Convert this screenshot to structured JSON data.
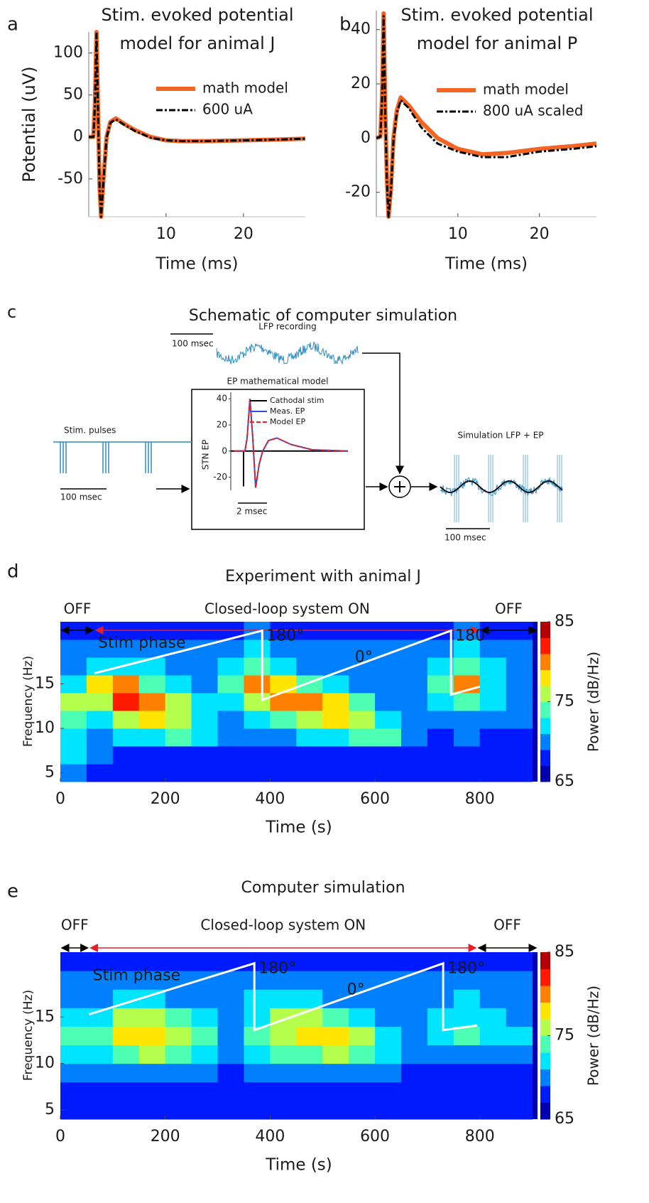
{
  "chart_data": [
    {
      "panel_label": "a",
      "type": "line",
      "title": [
        "Stim. evoked potential",
        "model for animal J"
      ],
      "x_label": "Time (ms)",
      "y_label": "Potential (uV)",
      "x": [
        0,
        0.6,
        0.8,
        1.0,
        1.2,
        1.4,
        1.6,
        1.9,
        2.3,
        2.8,
        3.5,
        4.5,
        6,
        8,
        10,
        12,
        15,
        20,
        25,
        28
      ],
      "series": [
        {
          "name": "math model",
          "color": "#f26522",
          "style": "solid",
          "values": [
            0,
            0,
            40,
            125,
            30,
            -60,
            -95,
            -50,
            0,
            18,
            22,
            16,
            8,
            0,
            -4,
            -5,
            -5,
            -4,
            -3,
            -2
          ]
        },
        {
          "name": "600 uA",
          "color": "#000000",
          "style": "dash-dot",
          "values": [
            0,
            0,
            38,
            123,
            28,
            -62,
            -95,
            -52,
            -1,
            17,
            21,
            15,
            7,
            -1,
            -4,
            -5,
            -5,
            -4,
            -3,
            -2
          ]
        }
      ],
      "xlim": [
        0,
        28
      ],
      "ylim": [
        -95,
        125
      ],
      "xticks": [
        10,
        20
      ],
      "yticks": [
        -50,
        0,
        50,
        100
      ],
      "legend": "upper right"
    },
    {
      "panel_label": "b",
      "type": "line",
      "title": [
        "Stim. evoked potential",
        "model for animal P"
      ],
      "x_label": "Time (ms)",
      "x": [
        0,
        0.5,
        0.7,
        0.9,
        1.1,
        1.3,
        1.5,
        1.8,
        2.1,
        2.5,
        3.0,
        4,
        5.5,
        7.5,
        10,
        13,
        16,
        20,
        24,
        27
      ],
      "series": [
        {
          "name": "math model",
          "color": "#f26522",
          "style": "solid",
          "values": [
            0,
            0.5,
            15,
            46,
            10,
            -15,
            -29,
            -18,
            0,
            10,
            15,
            12,
            6,
            0,
            -4,
            -6,
            -5.5,
            -4,
            -3,
            -2
          ]
        },
        {
          "name": "800 uA scaled",
          "color": "#000000",
          "style": "dash-dot",
          "values": [
            0,
            0.5,
            14,
            45,
            9,
            -16,
            -29,
            -19,
            -1,
            9,
            14,
            11,
            4,
            -2,
            -5,
            -7,
            -7,
            -5,
            -4,
            -3
          ]
        }
      ],
      "xlim": [
        0,
        27
      ],
      "ylim": [
        -29,
        47
      ],
      "xticks": [
        10,
        20
      ],
      "yticks": [
        -20,
        0,
        20,
        40
      ],
      "legend": "upper right"
    },
    {
      "panel_label": "d",
      "type": "heatmap",
      "title": "Experiment with animal J",
      "x_label": "Time (s)",
      "y_label": "Frequency (Hz)",
      "x_bins": [
        0,
        50,
        100,
        150,
        200,
        250,
        300,
        350,
        400,
        450,
        500,
        550,
        600,
        650,
        700,
        750,
        800,
        850,
        900
      ],
      "y_bins": [
        4,
        6,
        8,
        10,
        12,
        14,
        16,
        18,
        20,
        22
      ],
      "z": [
        [
          70,
          68,
          67,
          67,
          67,
          67,
          67,
          67,
          67,
          67,
          67,
          67,
          67,
          67,
          67,
          67,
          67,
          67
        ],
        [
          71,
          69,
          68,
          68,
          68,
          68,
          68,
          68,
          68,
          68,
          68,
          68,
          68,
          68,
          68,
          68,
          67,
          67
        ],
        [
          72,
          70,
          71,
          72,
          74,
          71,
          69,
          69,
          70,
          71,
          72,
          74,
          73,
          69,
          68,
          69,
          68,
          68
        ],
        [
          74,
          72,
          75,
          77,
          76,
          72,
          70,
          71,
          73,
          75,
          77,
          76,
          72,
          69,
          69,
          70,
          69,
          69
        ],
        [
          76,
          76,
          81,
          80,
          75,
          71,
          71,
          75,
          80,
          80,
          77,
          73,
          70,
          70,
          71,
          74,
          71,
          70
        ],
        [
          72,
          77,
          79,
          74,
          71,
          70,
          73,
          79,
          78,
          74,
          71,
          70,
          70,
          70,
          73,
          79,
          72,
          70
        ],
        [
          70,
          72,
          72,
          71,
          70,
          70,
          72,
          74,
          72,
          70,
          70,
          70,
          69,
          70,
          71,
          74,
          71,
          69
        ],
        [
          69,
          70,
          70,
          69,
          69,
          69,
          70,
          71,
          70,
          69,
          69,
          69,
          69,
          69,
          70,
          71,
          69,
          69
        ],
        [
          68,
          68,
          68,
          68,
          68,
          68,
          68,
          69,
          68,
          68,
          68,
          68,
          68,
          68,
          68,
          69,
          68,
          68
        ]
      ],
      "colormap": "jet",
      "zlim": [
        65,
        85
      ],
      "zticks": [
        65,
        75,
        85
      ],
      "colorbar_label": "Power (dB/Hz)",
      "xlim": [
        0,
        910
      ],
      "ylim": [
        4,
        22
      ],
      "xticks": [
        0,
        200,
        400,
        600,
        800
      ],
      "yticks": [
        5,
        10,
        15
      ],
      "segments": [
        {
          "label": "OFF",
          "start": 0,
          "end": 65,
          "color": "#000000"
        },
        {
          "label": "Closed-loop system ON",
          "start": 65,
          "end": 800,
          "color": "#e8202a"
        },
        {
          "label": "OFF",
          "start": 800,
          "end": 910,
          "color": "#000000"
        }
      ],
      "stim_phase": {
        "x": [
          65,
          385,
          385,
          745,
          745,
          800
        ],
        "y": [
          16.2,
          21,
          13.2,
          21,
          13.8,
          14.7
        ],
        "color": "#ffffff"
      },
      "annotations": [
        "Stim phase",
        "180°",
        "0°",
        "180°"
      ]
    },
    {
      "panel_label": "e",
      "type": "heatmap",
      "title": "Computer simulation",
      "x_label": "Time (s)",
      "y_label": "Frequency (Hz)",
      "x_bins": [
        0,
        50,
        100,
        150,
        200,
        250,
        300,
        350,
        400,
        450,
        500,
        550,
        600,
        650,
        700,
        750,
        800,
        850,
        900
      ],
      "y_bins": [
        4,
        6,
        8,
        10,
        12,
        14,
        16,
        18,
        20,
        22
      ],
      "z": [
        [
          67,
          67,
          67,
          67,
          67,
          67,
          67,
          67,
          67,
          67,
          67,
          67,
          67,
          67,
          67,
          67,
          67,
          67
        ],
        [
          68,
          68,
          68,
          68,
          68,
          68,
          68,
          68,
          68,
          68,
          68,
          68,
          68,
          68,
          68,
          68,
          68,
          68
        ],
        [
          69,
          69,
          69,
          70,
          70,
          69,
          68,
          69,
          69,
          69,
          70,
          70,
          69,
          68,
          68,
          68,
          68,
          68
        ],
        [
          72,
          71,
          74,
          75,
          74,
          72,
          69,
          71,
          73,
          74,
          75,
          74,
          71,
          69,
          69,
          70,
          70,
          70
        ],
        [
          73,
          73,
          77,
          78,
          76,
          73,
          70,
          73,
          76,
          78,
          77,
          75,
          71,
          70,
          71,
          73,
          72,
          71
        ],
        [
          71,
          72,
          75,
          75,
          73,
          71,
          70,
          72,
          75,
          76,
          74,
          72,
          70,
          70,
          71,
          72,
          71,
          70
        ],
        [
          70,
          70,
          71,
          71,
          70,
          70,
          70,
          71,
          71,
          71,
          70,
          70,
          70,
          70,
          70,
          71,
          70,
          70
        ],
        [
          69,
          69,
          69,
          69,
          69,
          69,
          69,
          69,
          69,
          69,
          69,
          69,
          69,
          69,
          69,
          69,
          69,
          69
        ],
        [
          68,
          68,
          68,
          68,
          68,
          68,
          68,
          68,
          68,
          68,
          68,
          68,
          68,
          68,
          68,
          68,
          68,
          68
        ]
      ],
      "colormap": "jet",
      "zlim": [
        65,
        85
      ],
      "zticks": [
        65,
        75,
        85
      ],
      "colorbar_label": "Power (dB/Hz)",
      "xlim": [
        0,
        910
      ],
      "ylim": [
        4,
        22
      ],
      "xticks": [
        0,
        200,
        400,
        600,
        800
      ],
      "yticks": [
        5,
        10,
        15
      ],
      "segments": [
        {
          "label": "OFF",
          "start": 0,
          "end": 55,
          "color": "#000000"
        },
        {
          "label": "Closed-loop system ON",
          "start": 55,
          "end": 795,
          "color": "#e8202a"
        },
        {
          "label": "OFF",
          "start": 795,
          "end": 910,
          "color": "#000000"
        }
      ],
      "stim_phase": {
        "x": [
          55,
          370,
          370,
          730,
          730,
          795
        ],
        "y": [
          15.3,
          20.8,
          13.6,
          20.8,
          13.6,
          14.1
        ],
        "color": "#ffffff"
      },
      "annotations": [
        "Stim phase",
        "180°",
        "0°",
        "180°"
      ]
    }
  ],
  "schematic": {
    "panel_label": "c",
    "title": "Schematic of computer simulation",
    "lfp_label": "LFP recording",
    "lfp_scale": "100 msec",
    "model_label": "EP mathematical model",
    "stim_label": "Stim. pulses",
    "stim_scale": "100 msec",
    "sim_label": "Simulation LFP + EP",
    "sim_scale": "100 msec",
    "inset": {
      "y_label": "STN EP",
      "ylim": [
        -30,
        45
      ],
      "yticks": [
        40,
        20,
        0,
        -20
      ],
      "x_scale": "2 msec",
      "legend": [
        {
          "name": "Cathodal stim",
          "color": "#000000"
        },
        {
          "name": "Meas. EP",
          "color": "#2a4fd6"
        },
        {
          "name": "Model EP",
          "color": "#e8202a"
        }
      ]
    }
  }
}
